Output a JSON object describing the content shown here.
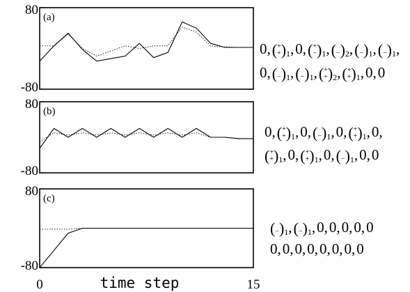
{
  "chart_data": [
    {
      "type": "line",
      "panel_label": "(a)",
      "ylim": [
        -80,
        80
      ],
      "y_ticks": [
        "80",
        "-80"
      ],
      "xlim": [
        0,
        15
      ],
      "x": [
        0,
        1,
        2,
        3,
        4,
        5,
        6,
        7,
        8,
        9,
        10,
        11,
        12,
        13,
        14,
        15
      ],
      "series": [
        {
          "style": "solid",
          "values": [
            -25,
            5,
            30,
            -2,
            -25,
            -20,
            -15,
            10,
            -18,
            -8,
            52,
            40,
            10,
            2,
            2,
            2
          ]
        },
        {
          "style": "dotted",
          "values": [
            5,
            5,
            28,
            0,
            -15,
            -5,
            5,
            0,
            5,
            5,
            42,
            32,
            5,
            3,
            2,
            2
          ]
        }
      ],
      "sequence": [
        [
          {
            "t": "0"
          },
          {
            "t": "c"
          },
          {
            "s": "+",
            "b": "+",
            "n": "1"
          },
          {
            "t": "c"
          },
          {
            "t": "0"
          },
          {
            "t": "c"
          },
          {
            "s": "+",
            "b": "−",
            "n": "1"
          },
          {
            "t": "c"
          },
          {
            "s": "",
            "b": "−",
            "n": "2"
          },
          {
            "t": "c"
          },
          {
            "s": "",
            "b": "−",
            "n": "1"
          },
          {
            "t": "c"
          },
          {
            "s": "",
            "b": "−",
            "n": "1"
          },
          {
            "t": "c"
          }
        ],
        [
          {
            "t": "0"
          },
          {
            "t": "c"
          },
          {
            "s": "",
            "b": "−",
            "n": "1"
          },
          {
            "t": "c"
          },
          {
            "s": "",
            "b": "−",
            "n": "1"
          },
          {
            "t": "c"
          },
          {
            "s": "+",
            "b": "+",
            "n": "2"
          },
          {
            "t": "c"
          },
          {
            "s": "+",
            "b": "+",
            "n": "1"
          },
          {
            "t": "c"
          },
          {
            "t": "0"
          },
          {
            "t": "c"
          },
          {
            "t": "0"
          }
        ]
      ]
    },
    {
      "type": "line",
      "panel_label": "(b)",
      "ylim": [
        -80,
        80
      ],
      "y_ticks": [
        "80",
        "-80"
      ],
      "xlim": [
        0,
        15
      ],
      "x": [
        0,
        1,
        2,
        3,
        4,
        5,
        6,
        7,
        8,
        9,
        10,
        11,
        12,
        13,
        14,
        15
      ],
      "series": [
        {
          "style": "solid",
          "values": [
            -25,
            20,
            0,
            20,
            0,
            20,
            0,
            20,
            0,
            20,
            0,
            20,
            0,
            0,
            -3,
            -3
          ]
        },
        {
          "style": "dotted",
          "values": [
            -10,
            10,
            5,
            10,
            5,
            10,
            5,
            10,
            5,
            10,
            5,
            10,
            0,
            0,
            -3,
            -3
          ]
        }
      ],
      "sequence": [
        [
          {
            "t": "0"
          },
          {
            "t": "c"
          },
          {
            "s": "+",
            "b": "+",
            "n": "1"
          },
          {
            "t": "c"
          },
          {
            "t": "0"
          },
          {
            "t": "c"
          },
          {
            "s": "",
            "b": "−",
            "n": "1"
          },
          {
            "t": "c"
          },
          {
            "t": "0"
          },
          {
            "t": "c"
          },
          {
            "s": "+",
            "b": "+",
            "n": "1"
          },
          {
            "t": "c"
          },
          {
            "t": "0"
          },
          {
            "t": "c"
          }
        ],
        [
          {
            "s": "+",
            "b": "+",
            "n": "1"
          },
          {
            "t": "c"
          },
          {
            "t": "0"
          },
          {
            "t": "c"
          },
          {
            "s": "+",
            "b": "+",
            "n": "1"
          },
          {
            "t": "c"
          },
          {
            "t": "0"
          },
          {
            "t": "c"
          },
          {
            "s": "",
            "b": "−",
            "n": "1"
          },
          {
            "t": "c"
          },
          {
            "t": "0"
          },
          {
            "t": "c"
          },
          {
            "t": "0"
          }
        ]
      ]
    },
    {
      "type": "line",
      "panel_label": "(c)",
      "ylim": [
        -80,
        80
      ],
      "y_ticks": [
        "80",
        "-80"
      ],
      "xlim": [
        0,
        15
      ],
      "x_ticks": [
        "0",
        "15"
      ],
      "xlabel": "time step",
      "x": [
        0,
        1,
        2,
        3,
        4,
        5,
        6,
        7,
        8,
        9,
        10,
        11,
        12,
        13,
        14,
        15
      ],
      "series": [
        {
          "style": "solid",
          "values": [
            -80,
            -45,
            -10,
            0,
            0,
            0,
            0,
            0,
            0,
            0,
            0,
            0,
            0,
            0,
            0,
            0
          ]
        },
        {
          "style": "dotted",
          "values": [
            -2,
            -2,
            -2,
            0,
            0,
            0,
            0,
            0,
            0,
            0,
            0,
            0,
            0,
            0,
            0,
            0
          ]
        }
      ],
      "sequence": [
        [
          {
            "s": "",
            "b": "−",
            "n": "1"
          },
          {
            "t": "c"
          },
          {
            "s": "",
            "b": "−",
            "n": "1"
          },
          {
            "t": "c"
          },
          {
            "t": "0"
          },
          {
            "t": "c"
          },
          {
            "t": "0"
          },
          {
            "t": "c"
          },
          {
            "t": "0"
          },
          {
            "t": "c"
          },
          {
            "t": "0"
          },
          {
            "t": "c"
          },
          {
            "t": "0"
          }
        ],
        [
          {
            "t": "0"
          },
          {
            "t": "c"
          },
          {
            "t": "0"
          },
          {
            "t": "c"
          },
          {
            "t": "0"
          },
          {
            "t": "c"
          },
          {
            "t": "0"
          },
          {
            "t": "c"
          },
          {
            "t": "0"
          },
          {
            "t": "c"
          },
          {
            "t": "0"
          },
          {
            "t": "c"
          },
          {
            "t": "0"
          },
          {
            "t": "c"
          },
          {
            "t": "0"
          }
        ]
      ]
    }
  ]
}
